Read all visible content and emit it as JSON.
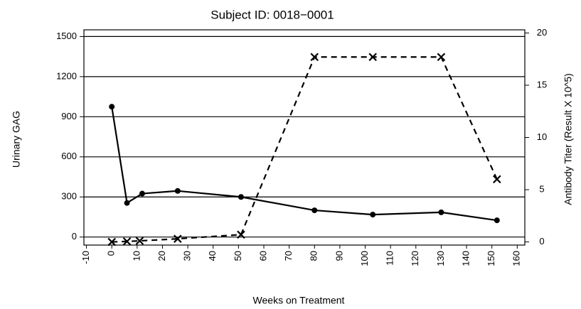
{
  "chart_data": {
    "type": "line",
    "title": "Subject ID: 0018−0001",
    "x_label": "Weeks on Treatment",
    "y_label": "Urinary GAG",
    "y2_label": "Antibody Titer (Result X 10^5)",
    "xlim": [
      -11,
      163
    ],
    "xticks": [
      -10,
      0,
      10,
      20,
      30,
      40,
      50,
      60,
      70,
      80,
      90,
      100,
      110,
      120,
      130,
      140,
      150,
      160
    ],
    "ylim": [
      -60,
      1550
    ],
    "yticks": [
      0,
      300,
      600,
      900,
      1200,
      1500
    ],
    "y2lim": [
      -0.3,
      20.3
    ],
    "y2ticks": [
      0,
      5,
      10,
      15,
      20
    ],
    "grid": true,
    "series": [
      {
        "color": "#000000",
        "line_style": "solid",
        "marker": "circle",
        "axis": "y",
        "x": [
          0,
          6,
          12,
          26,
          51,
          80,
          103,
          130,
          152
        ],
        "values": [
          975,
          255,
          325,
          345,
          300,
          200,
          168,
          185,
          125
        ]
      },
      {
        "color": "#000000",
        "line_style": "dashed",
        "marker": "x",
        "axis": "y2",
        "x": [
          0,
          6,
          11,
          26,
          51,
          80,
          103,
          130,
          152
        ],
        "values": [
          0,
          0.05,
          0.1,
          0.3,
          0.7,
          17.7,
          17.7,
          17.7,
          6
        ]
      }
    ]
  }
}
